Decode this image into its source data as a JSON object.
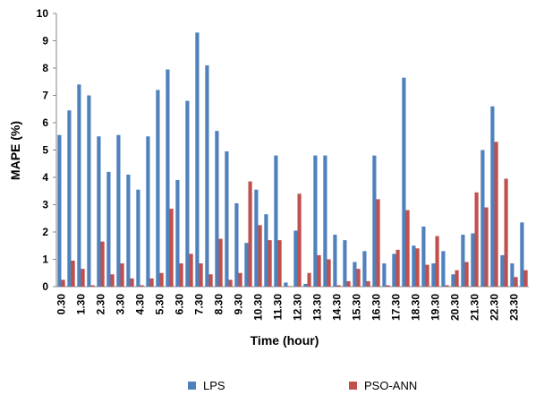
{
  "chart_data": {
    "type": "bar",
    "xlabel": "Time (hour)",
    "ylabel": "MAPE (%)",
    "categories": [
      "0.30",
      null,
      "1.30",
      null,
      "2.30",
      null,
      "3.30",
      null,
      "4.30",
      null,
      "5.30",
      null,
      "6.30",
      null,
      "7.30",
      null,
      "8.30",
      null,
      "9.30",
      null,
      "10.30",
      null,
      "11.30",
      null,
      "12.30",
      null,
      "13.30",
      null,
      "14.30",
      null,
      "15.30",
      null,
      "16.30",
      null,
      "17.30",
      null,
      "18.30",
      null,
      "19.30",
      null,
      "20.30",
      null,
      "21.30",
      null,
      "22.30",
      null,
      "23.30",
      null
    ],
    "series": [
      {
        "name": "LPS",
        "color": "#4f81bd",
        "values": [
          5.55,
          6.45,
          7.4,
          7.0,
          5.5,
          4.2,
          5.55,
          4.1,
          3.55,
          5.5,
          7.2,
          7.95,
          3.9,
          6.8,
          9.3,
          8.1,
          5.7,
          4.95,
          3.05,
          1.6,
          3.55,
          2.65,
          4.8,
          0.15,
          2.05,
          0.1,
          4.8,
          4.8,
          1.9,
          1.7,
          0.9,
          1.3,
          4.8,
          0.85,
          1.2,
          7.65,
          1.5,
          2.2,
          0.85,
          1.3,
          0.45,
          1.9,
          1.95,
          5.0,
          6.6,
          1.15,
          0.85,
          2.35
        ]
      },
      {
        "name": "PSO-ANN",
        "color": "#c0504d",
        "values": [
          0.25,
          0.95,
          0.65,
          0.05,
          1.65,
          0.45,
          0.85,
          0.3,
          0.05,
          0.3,
          0.5,
          2.85,
          0.85,
          1.2,
          0.85,
          0.45,
          1.75,
          0.25,
          0.5,
          3.85,
          2.25,
          1.7,
          1.7,
          0.02,
          3.4,
          0.5,
          1.15,
          1.0,
          0.05,
          0.2,
          0.65,
          0.2,
          3.2,
          0.05,
          1.35,
          2.8,
          1.4,
          0.8,
          1.85,
          0.05,
          0.6,
          0.9,
          3.45,
          2.9,
          5.3,
          3.95,
          0.35,
          0.6
        ]
      }
    ],
    "ylim": [
      0,
      10
    ],
    "yticks": [
      0,
      1,
      2,
      3,
      4,
      5,
      6,
      7,
      8,
      9,
      10
    ],
    "grid": false
  }
}
